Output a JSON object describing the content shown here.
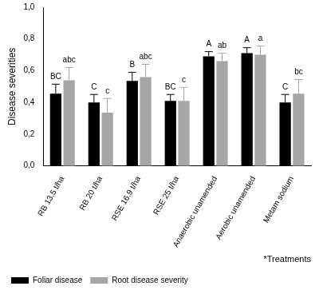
{
  "chart_data": {
    "type": "bar",
    "x_label": "*Treatments",
    "y_label": "Disease severities",
    "categories": [
      "RB 13.5 t/ha",
      "RB 20 t/ha",
      "RSE 16.9 t/ha",
      "RSE 25 t/ha",
      "Anaerobic unamended",
      "Aerobic unamended",
      "Metam sodium"
    ],
    "series": [
      {
        "name": "Foliar disease",
        "color": "#000000",
        "values": [
          0.455,
          0.4,
          0.535,
          0.41,
          0.69,
          0.71,
          0.4
        ],
        "error": [
          0.06,
          0.05,
          0.055,
          0.04,
          0.03,
          0.035,
          0.05
        ],
        "letters": [
          "BC",
          "C",
          "B",
          "BC",
          "A",
          "A",
          "C"
        ]
      },
      {
        "name": "Root disease severity",
        "color": "#a6a6a6",
        "values": [
          0.54,
          0.335,
          0.56,
          0.41,
          0.66,
          0.7,
          0.455
        ],
        "error": [
          0.08,
          0.09,
          0.08,
          0.085,
          0.05,
          0.055,
          0.09
        ],
        "letters": [
          "abc",
          "c",
          "abc",
          "c",
          "ab",
          "a",
          "bc"
        ]
      }
    ],
    "ylim": [
      0,
      1
    ],
    "yticks": [
      {
        "value": 0,
        "label": "0,0"
      },
      {
        "value": 0.2,
        "label": "0,2"
      },
      {
        "value": 0.4,
        "label": "0,4"
      },
      {
        "value": 0.6,
        "label": "0,6"
      },
      {
        "value": 0.8,
        "label": "0,8"
      },
      {
        "value": 1,
        "label": "1,0"
      }
    ],
    "grid": false,
    "legend": "bottom"
  }
}
